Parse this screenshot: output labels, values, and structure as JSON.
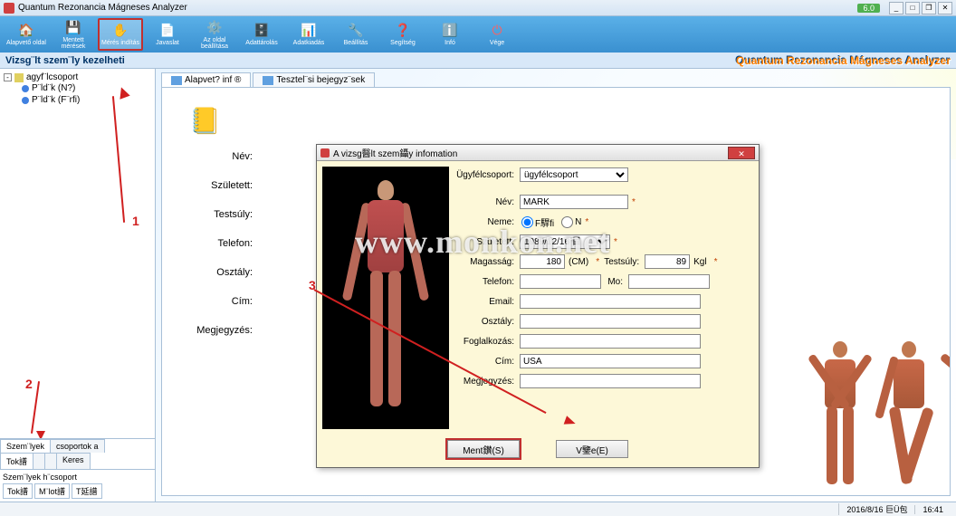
{
  "window": {
    "title": "Quantum Rezonancia Mágneses Analyzer",
    "badge": "6.0"
  },
  "toolbar": {
    "items": [
      {
        "label": "Alapvető oldal",
        "icon": "ticon-home"
      },
      {
        "label": "Mentett mérések",
        "icon": "ticon-save"
      },
      {
        "label": "Mérés indítás",
        "icon": "ticon-hand",
        "active": true
      },
      {
        "label": "Javaslat",
        "icon": "ticon-doc"
      },
      {
        "label": "Az oldal beállítása",
        "icon": "ticon-gear"
      },
      {
        "label": "Adattárolás",
        "icon": "ticon-db"
      },
      {
        "label": "Adatkiadás",
        "icon": "ticon-db2"
      },
      {
        "label": "Beállítás",
        "icon": "ticon-set"
      },
      {
        "label": "Segítség",
        "icon": "ticon-help"
      },
      {
        "label": "Infó",
        "icon": "ticon-info"
      },
      {
        "label": "Vége",
        "icon": "ticon-exit"
      }
    ]
  },
  "subheader": {
    "title": "Vizsg¨lt szem¨ly kezelheti",
    "brand": "Quantum Rezonancia Mágneses Analyzer"
  },
  "tree": {
    "root": "agyf¨lcsoport",
    "children": [
      "P¨ld¨k (N?)",
      "P¨ld¨k (F¨rfi)"
    ]
  },
  "annotations": {
    "n1": "1",
    "n2": "2",
    "n3": "3"
  },
  "sideTabs": {
    "row1": [
      "Szem¨lyek",
      "csoportok a"
    ],
    "row2": [
      "Tok譜",
      "",
      "",
      "Keres"
    ]
  },
  "sideBottom": {
    "label": "Szem¨lyek h¨csoport",
    "cells": [
      "Tok譜",
      "M¨lot譜",
      "T延譜"
    ]
  },
  "mainTabs": [
    "Alapvet? inf ®",
    "Tesztel¨si bejegyz¨sek"
  ],
  "backForm": {
    "labels": {
      "nev": "Név:",
      "neme": "Neme:",
      "szuletett": "Született:",
      "testsuly": "Testsúly:",
      "telefon": "Telefon:",
      "osztaly": "Osztály:",
      "cim": "Cím:",
      "megjegyzes": "Megjegyzés:"
    }
  },
  "dialog": {
    "title": "A vizsg醫lt szem鑷y infomation",
    "labels": {
      "ugyfel": "Ügyfélcsoport:",
      "nev": "Név:",
      "neme": "Neme:",
      "szuletett": "Született:",
      "magassag": "Magasság:",
      "testsuly": "Testsúly:",
      "telefon": "Telefon:",
      "mo": "Mo:",
      "email": "Email:",
      "osztaly": "Osztály:",
      "foglalkozas": "Foglalkozás:",
      "cim": "Cím:",
      "megjegyzes": "Megjegyzés:"
    },
    "values": {
      "ugyfel": "ügyfélcsoport",
      "nev": "MARK",
      "neme_ferfi": "F駻fi",
      "neme_no": "N",
      "szuletett": "1989/12/16 目",
      "magassag": "180",
      "magassag_unit": "(CM)",
      "testsuly": "89",
      "testsuly_unit": "Kgl",
      "telefon": "",
      "cim": "USA"
    },
    "buttons": {
      "save": "Ment鑚(S)",
      "cancel": "V鑒e(E)"
    },
    "star": "*"
  },
  "watermark": "www.monkon.net",
  "status": {
    "date": "2016/8/16 巨Ü包",
    "time": "16:41"
  },
  "colors": {
    "toolbar_top": "#5ab0e8",
    "toolbar_bot": "#3a90d0",
    "accent_red": "#c03030",
    "dialog_bg": "#fdf8d8",
    "brand_orange": "#ff8000"
  }
}
